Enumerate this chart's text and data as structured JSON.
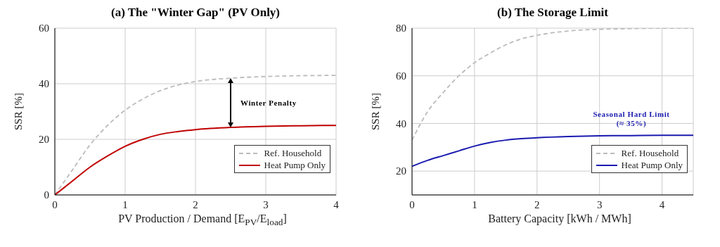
{
  "chart_data": [
    {
      "type": "line",
      "title": "(a) The \"Winter Gap\" (PV Only)",
      "xlabel": "PV Production / Demand [E$_{PV}$/E$_{load}$]",
      "ylabel": "SSR [%]",
      "x": [
        0,
        0.25,
        0.5,
        0.75,
        1,
        1.25,
        1.5,
        1.75,
        2,
        2.5,
        3,
        3.5,
        4
      ],
      "series": [
        {
          "name": "Ref. Household",
          "color": "#bbbbbb",
          "line_style": "dashed",
          "values": [
            0,
            9,
            18,
            25,
            30.5,
            34.5,
            37.5,
            39.5,
            40.8,
            42,
            42.6,
            42.9,
            43
          ]
        },
        {
          "name": "Heat Pump Only",
          "color": "#c00000",
          "line_style": "solid",
          "values": [
            0,
            5,
            10,
            14,
            17.5,
            20,
            21.8,
            22.8,
            23.5,
            24.3,
            24.7,
            24.9,
            25
          ]
        }
      ],
      "xlim": [
        0,
        4
      ],
      "xticks": [
        0,
        1,
        2,
        3,
        4
      ],
      "ylim": [
        0,
        60
      ],
      "yticks": [
        0,
        20,
        40,
        60
      ],
      "grid": true,
      "legend": "bottom right",
      "marker": "none",
      "annotations": [
        "Winter Penalty"
      ]
    },
    {
      "type": "line",
      "title": "(b) The Storage Limit",
      "xlabel": "Battery Capacity [kWh / MWh]",
      "ylabel": "SSR [%]",
      "x": [
        0,
        0.25,
        0.5,
        0.75,
        1,
        1.25,
        1.5,
        1.75,
        2,
        2.5,
        3,
        3.5,
        4,
        4.5
      ],
      "series": [
        {
          "name": "Ref. Household",
          "color": "#bbbbbb",
          "line_style": "dashed",
          "values": [
            33,
            45,
            53,
            60,
            65.5,
            69.5,
            73,
            75.5,
            77,
            78.8,
            79.5,
            79.8,
            80,
            80
          ]
        },
        {
          "name": "Heat Pump Only",
          "color": "#1a1ab0",
          "line_style": "solid",
          "values": [
            22,
            24.5,
            26.5,
            28.5,
            30.5,
            32,
            33,
            33.6,
            34,
            34.5,
            34.8,
            34.9,
            35,
            35
          ]
        }
      ],
      "xlim": [
        0,
        4.5
      ],
      "xticks": [
        0,
        1,
        2,
        3,
        4
      ],
      "ylim": [
        10,
        80
      ],
      "yticks": [
        20,
        40,
        60,
        80
      ],
      "grid": true,
      "legend": "bottom right",
      "marker": "none",
      "annotations": [
        "Seasonal Hard Limit\n(≈ 35%)"
      ]
    }
  ]
}
